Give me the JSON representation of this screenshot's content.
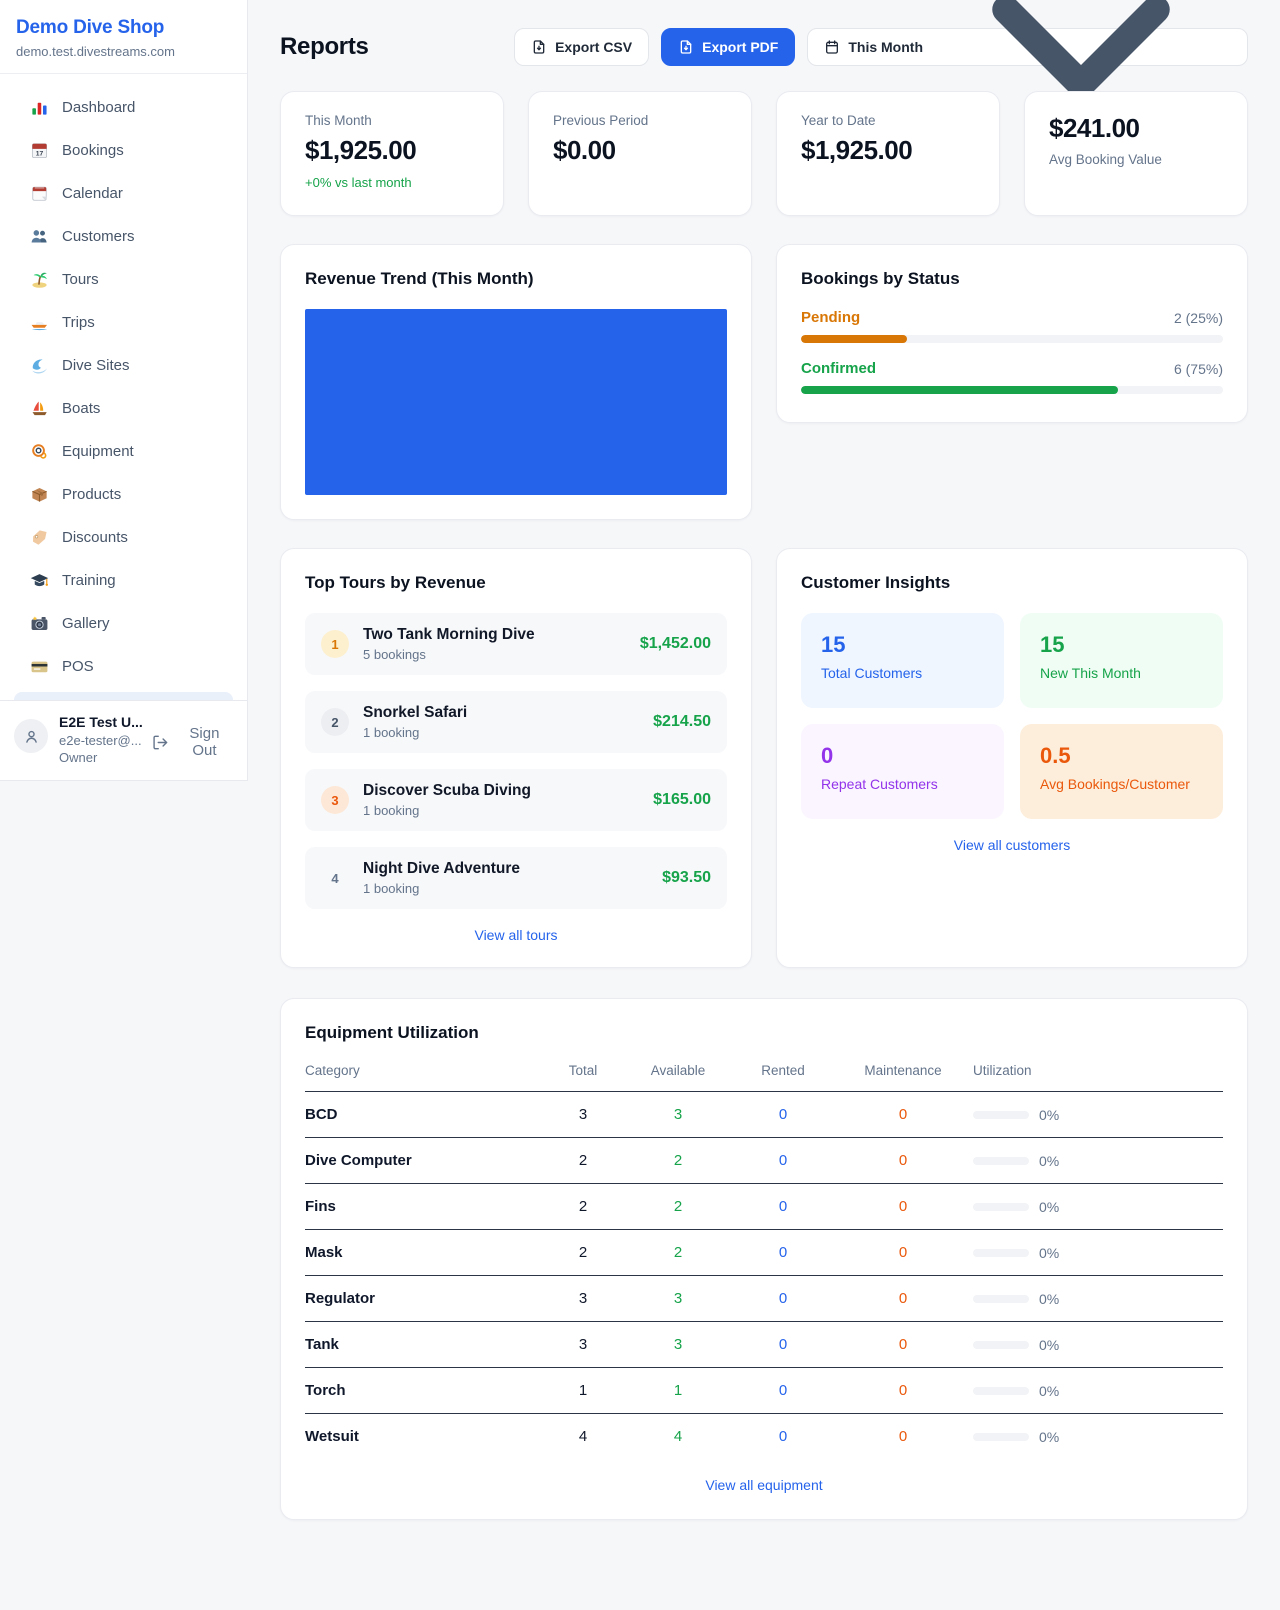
{
  "colors": {
    "accent_blue": "#2563eb",
    "green": "#16a34a",
    "amber": "#d97706",
    "orange": "#ea580c",
    "purple": "#9333ea"
  },
  "sidebar": {
    "shop_name": "Demo Dive Shop",
    "shop_domain": "demo.test.divestreams.com",
    "items": [
      {
        "icon": "bar-chart-icon",
        "label": "Dashboard"
      },
      {
        "icon": "bookings-calendar-icon",
        "label": "Bookings"
      },
      {
        "icon": "calendar-icon",
        "label": "Calendar"
      },
      {
        "icon": "people-icon",
        "label": "Customers"
      },
      {
        "icon": "island-icon",
        "label": "Tours"
      },
      {
        "icon": "speedboat-icon",
        "label": "Trips"
      },
      {
        "icon": "wave-icon",
        "label": "Dive Sites"
      },
      {
        "icon": "sailboat-icon",
        "label": "Boats"
      },
      {
        "icon": "dive-mask-icon",
        "label": "Equipment"
      },
      {
        "icon": "box-icon",
        "label": "Products"
      },
      {
        "icon": "tag-icon",
        "label": "Discounts"
      },
      {
        "icon": "grad-cap-icon",
        "label": "Training"
      },
      {
        "icon": "camera-icon",
        "label": "Gallery"
      },
      {
        "icon": "credit-card-icon",
        "label": "POS"
      }
    ],
    "user": {
      "name": "E2E Test U...",
      "email": "e2e-tester@...",
      "role": "Owner",
      "sign_out_label": "Sign Out"
    }
  },
  "header": {
    "title": "Reports",
    "export_csv_label": "Export CSV",
    "export_pdf_label": "Export PDF",
    "period_label": "This Month"
  },
  "stats": [
    {
      "label": "This Month",
      "value": "$1,925.00",
      "sub": "+0% vs last month"
    },
    {
      "label": "Previous Period",
      "value": "$0.00"
    },
    {
      "label": "Year to Date",
      "value": "$1,925.00"
    },
    {
      "label": "Avg Booking Value",
      "value": "$241.00",
      "value_first": true
    }
  ],
  "revenue_trend": {
    "title": "Revenue Trend (This Month)",
    "bar_color": "#2563eb"
  },
  "bookings_by_status": {
    "title": "Bookings by Status",
    "rows": [
      {
        "label": "Pending",
        "value": "2 (25%)",
        "pct": 25,
        "color": "#d97706"
      },
      {
        "label": "Confirmed",
        "value": "6 (75%)",
        "pct": 75,
        "color": "#16a34a"
      }
    ]
  },
  "top_tours": {
    "title": "Top Tours by Revenue",
    "view_all_label": "View all tours",
    "rows": [
      {
        "rank": "1",
        "name": "Two Tank Morning Dive",
        "bookings": "5 bookings",
        "amount": "$1,452.00",
        "badge_bg": "#fdf0cf",
        "badge_fg": "#d97706"
      },
      {
        "rank": "2",
        "name": "Snorkel Safari",
        "bookings": "1 booking",
        "amount": "$214.50",
        "badge_bg": "#eceef1",
        "badge_fg": "#475569"
      },
      {
        "rank": "3",
        "name": "Discover Scuba Diving",
        "bookings": "1 booking",
        "amount": "$165.00",
        "badge_bg": "#fde8d7",
        "badge_fg": "#ea580c"
      },
      {
        "rank": "4",
        "name": "Night Dive Adventure",
        "bookings": "1 booking",
        "amount": "$93.50",
        "badge_bg": "transparent",
        "badge_fg": "#64748b"
      }
    ]
  },
  "customer_insights": {
    "title": "Customer Insights",
    "view_all_label": "View all customers",
    "tiles": [
      {
        "value": "15",
        "label": "Total Customers",
        "bg": "#eff6ff",
        "fg": "#2563eb"
      },
      {
        "value": "15",
        "label": "New This Month",
        "bg": "#f0fdf4",
        "fg": "#16a34a"
      },
      {
        "value": "0",
        "label": "Repeat Customers",
        "bg": "#faf5ff",
        "fg": "#9333ea"
      },
      {
        "value": "0.5",
        "label": "Avg Bookings/Customer",
        "bg": "#fdeedb",
        "fg": "#ea580c"
      }
    ]
  },
  "equipment": {
    "title": "Equipment Utilization",
    "view_all_label": "View all equipment",
    "columns": [
      "Category",
      "Total",
      "Available",
      "Rented",
      "Maintenance",
      "Utilization"
    ],
    "rows": [
      {
        "category": "BCD",
        "total": "3",
        "available": "3",
        "rented": "0",
        "maintenance": "0",
        "utilization": "0%"
      },
      {
        "category": "Dive Computer",
        "total": "2",
        "available": "2",
        "rented": "0",
        "maintenance": "0",
        "utilization": "0%"
      },
      {
        "category": "Fins",
        "total": "2",
        "available": "2",
        "rented": "0",
        "maintenance": "0",
        "utilization": "0%"
      },
      {
        "category": "Mask",
        "total": "2",
        "available": "2",
        "rented": "0",
        "maintenance": "0",
        "utilization": "0%"
      },
      {
        "category": "Regulator",
        "total": "3",
        "available": "3",
        "rented": "0",
        "maintenance": "0",
        "utilization": "0%"
      },
      {
        "category": "Tank",
        "total": "3",
        "available": "3",
        "rented": "0",
        "maintenance": "0",
        "utilization": "0%"
      },
      {
        "category": "Torch",
        "total": "1",
        "available": "1",
        "rented": "0",
        "maintenance": "0",
        "utilization": "0%"
      },
      {
        "category": "Wetsuit",
        "total": "4",
        "available": "4",
        "rented": "0",
        "maintenance": "0",
        "utilization": "0%"
      }
    ]
  },
  "chart_data": [
    {
      "type": "bar",
      "title": "Revenue Trend (This Month)",
      "categories": [
        "This Month"
      ],
      "values": [
        1925.0
      ],
      "ylim": [
        0,
        1925
      ],
      "bar_color": "#2563eb",
      "note": "single full-width, full-height blue bar; no axes, ticks or gridlines shown"
    },
    {
      "type": "bar",
      "orientation": "horizontal",
      "title": "Bookings by Status",
      "categories": [
        "Pending",
        "Confirmed"
      ],
      "values": [
        25,
        75
      ],
      "value_labels": [
        "2 (25%)",
        "6 (75%)"
      ],
      "colors": [
        "#d97706",
        "#16a34a"
      ],
      "xlim": [
        0,
        100
      ]
    }
  ]
}
